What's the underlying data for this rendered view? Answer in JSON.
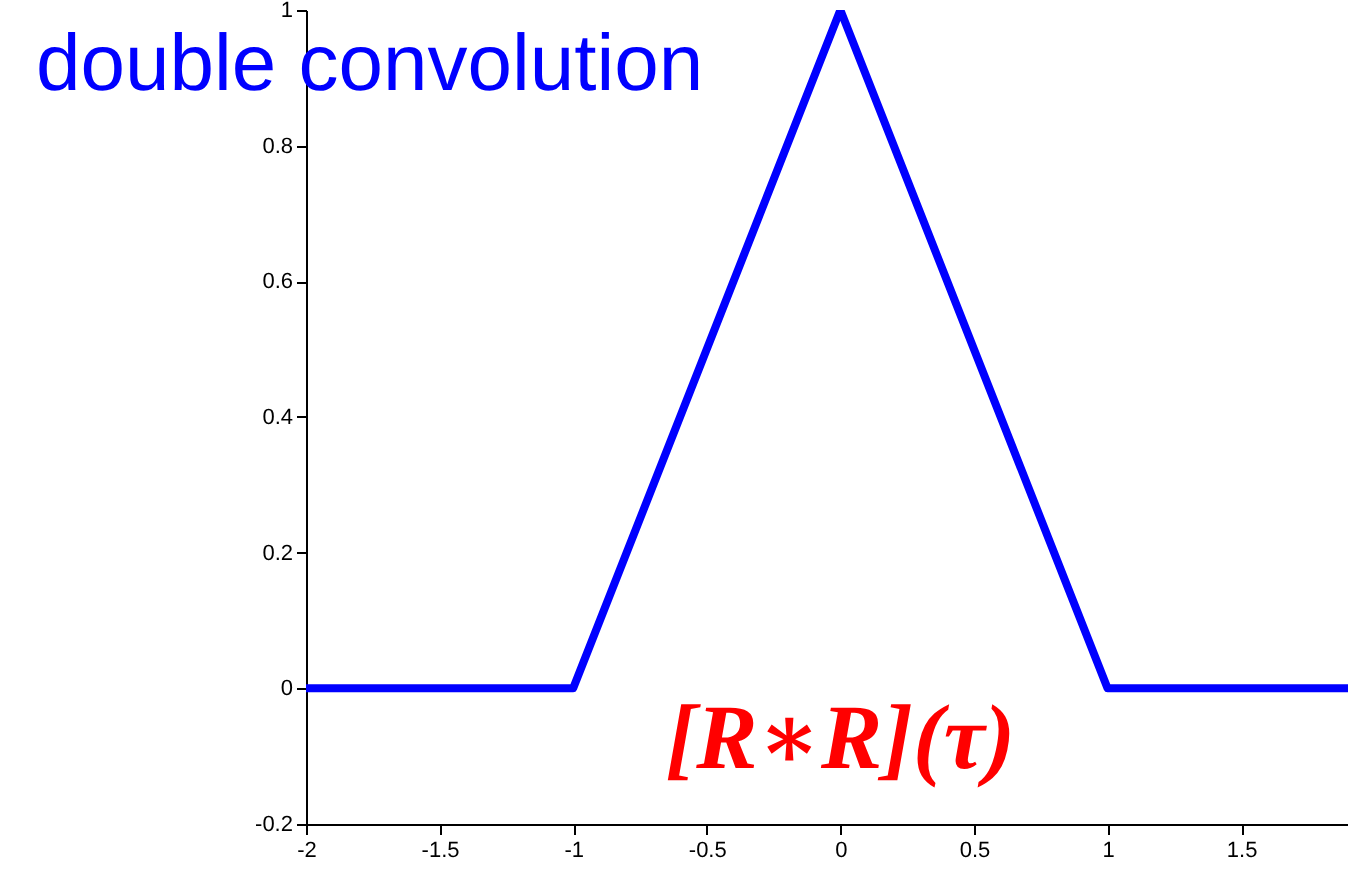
{
  "chart_data": {
    "type": "line",
    "x": [
      -2,
      -1,
      0,
      1,
      1.9
    ],
    "series": [
      {
        "color": "#0000ff",
        "values": [
          0,
          0,
          1,
          0,
          0
        ]
      }
    ],
    "xlim": [
      -2,
      1.9
    ],
    "ylim": [
      -0.2,
      1
    ],
    "xticks": [
      -2,
      -1.5,
      -1,
      -0.5,
      0,
      0.5,
      1,
      1.5
    ],
    "yticks": [
      -0.2,
      0,
      0.2,
      0.4,
      0.6,
      0.8,
      1
    ],
    "grid": false,
    "marker": "none",
    "line_style": "solid",
    "annotations": [
      "double convolution",
      "[R∗R](τ)"
    ]
  }
}
